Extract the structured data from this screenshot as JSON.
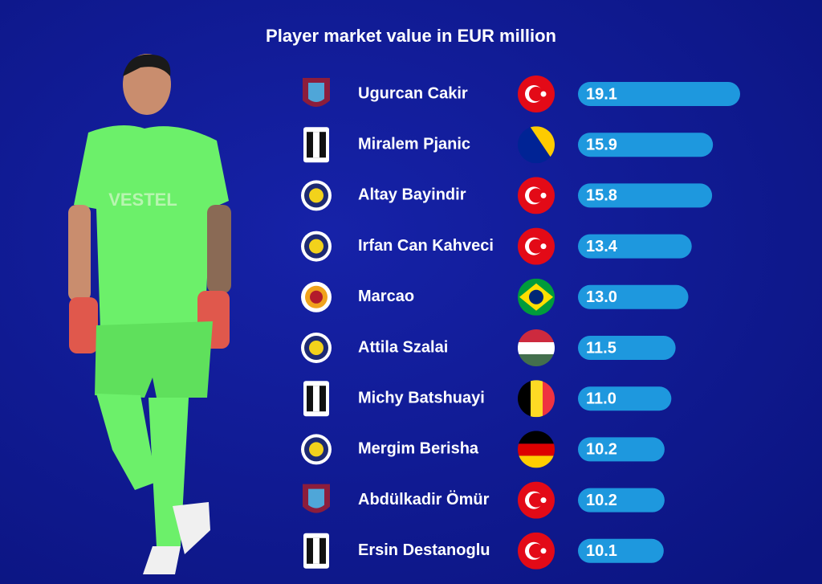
{
  "chart_data": {
    "type": "bar",
    "title": "Player market value in EUR million",
    "categories": [
      "Ugurcan Cakir",
      "Miralem Pjanic",
      "Altay Bayindir",
      "Irfan Can Kahveci",
      "Marcao",
      "Attila Szalai",
      "Michy Batshuayi",
      "Mergim Berisha",
      "Abdülkadir Ömür",
      "Ersin Destanoglu"
    ],
    "values": [
      19.1,
      15.9,
      15.8,
      13.4,
      13.0,
      11.5,
      11.0,
      10.2,
      10.2,
      10.1
    ],
    "value_labels": [
      "19.1",
      "15.9",
      "15.8",
      "13.4",
      "13.0",
      "11.5",
      "11.0",
      "10.2",
      "10.2",
      "10.1"
    ],
    "color": "#1e98de"
  }
}
